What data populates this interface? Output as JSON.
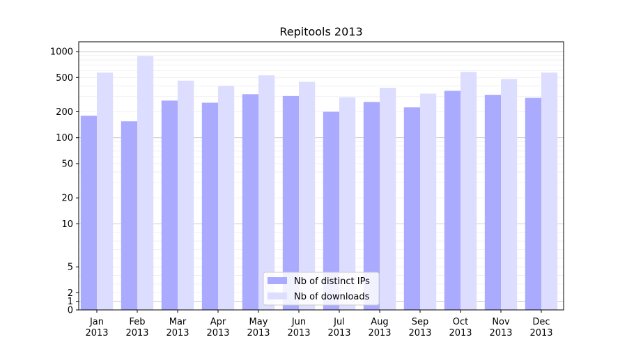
{
  "chart_data": {
    "type": "bar",
    "title": "Repitools 2013",
    "xlabel": "",
    "ylabel": "",
    "y_scale": "symlog",
    "ylim": [
      0,
      1300
    ],
    "y_ticks": [
      0,
      1,
      2,
      5,
      10,
      20,
      50,
      100,
      200,
      500,
      1000
    ],
    "categories": [
      "Jan 2013",
      "Feb 2013",
      "Mar 2013",
      "Apr 2013",
      "May 2013",
      "Jun 2013",
      "Jul 2013",
      "Aug 2013",
      "Sep 2013",
      "Oct 2013",
      "Nov 2013",
      "Dec 2013"
    ],
    "category_lines": [
      [
        "Jan",
        "2013"
      ],
      [
        "Feb",
        "2013"
      ],
      [
        "Mar",
        "2013"
      ],
      [
        "Apr",
        "2013"
      ],
      [
        "May",
        "2013"
      ],
      [
        "Jun",
        "2013"
      ],
      [
        "Jul",
        "2013"
      ],
      [
        "Aug",
        "2013"
      ],
      [
        "Sep",
        "2013"
      ],
      [
        "Oct",
        "2013"
      ],
      [
        "Nov",
        "2013"
      ],
      [
        "Dec",
        "2013"
      ]
    ],
    "series": [
      {
        "name": "Nb of distinct IPs",
        "color": "#aaaaff",
        "values": [
          180,
          155,
          270,
          255,
          320,
          305,
          200,
          260,
          225,
          350,
          315,
          290
        ]
      },
      {
        "name": "Nb of downloads",
        "color": "#ddddff",
        "values": [
          570,
          890,
          460,
          400,
          530,
          445,
          295,
          380,
          325,
          580,
          480,
          570
        ]
      }
    ],
    "grid": true,
    "legend_position": "bottom-center"
  }
}
